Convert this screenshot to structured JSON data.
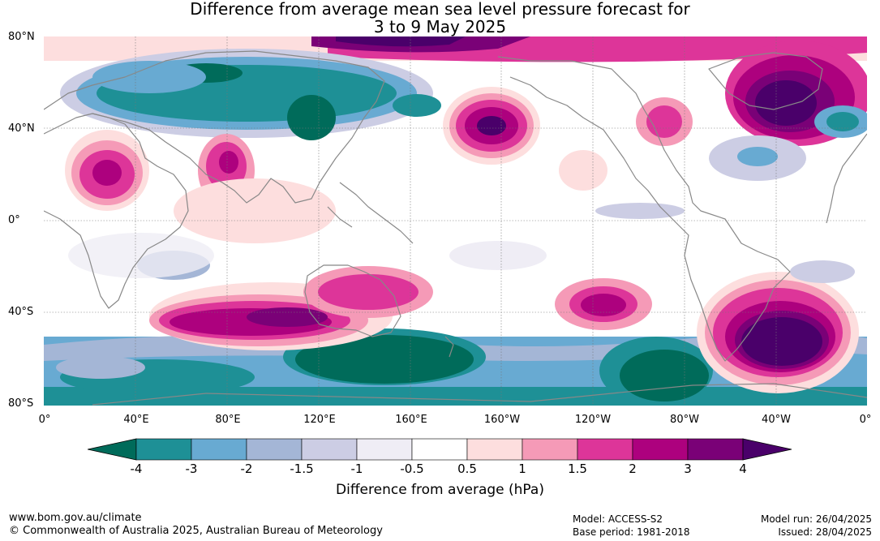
{
  "title": {
    "line1": "Difference from average mean sea level pressure forecast for",
    "line2": "3 to 9 May 2025"
  },
  "map": {
    "lat_labels": [
      "80°N",
      "40°N",
      "0°",
      "40°S",
      "80°S"
    ],
    "lon_labels": [
      "0°",
      "40°E",
      "80°E",
      "120°E",
      "160°E",
      "160°W",
      "120°W",
      "80°W",
      "40°W",
      "0°"
    ],
    "land_color": "#888888"
  },
  "colorbar": {
    "ticks": [
      "-4",
      "-3",
      "-2",
      "-1.5",
      "-1",
      "-0.5",
      "0.5",
      "1",
      "1.5",
      "2",
      "3",
      "4"
    ],
    "colors": [
      "#006b5a",
      "#1e9096",
      "#68aad2",
      "#a4b6d6",
      "#cccde4",
      "#efedf5",
      "#ffffff",
      "#fddede",
      "#f59ab7",
      "#dd3599",
      "#ad017e",
      "#7a0177",
      "#4a006a"
    ],
    "title": "Difference from average (hPa)"
  },
  "footer": {
    "url": "www.bom.gov.au/climate",
    "copyright": "© Commonwealth of Australia 2025, Australian Bureau of Meteorology",
    "model": "Model: ACCESS-S2",
    "base_period": "Base period: 1981-2018",
    "model_run": "Model run: 26/04/2025",
    "issued": "Issued: 28/04/2025"
  }
}
